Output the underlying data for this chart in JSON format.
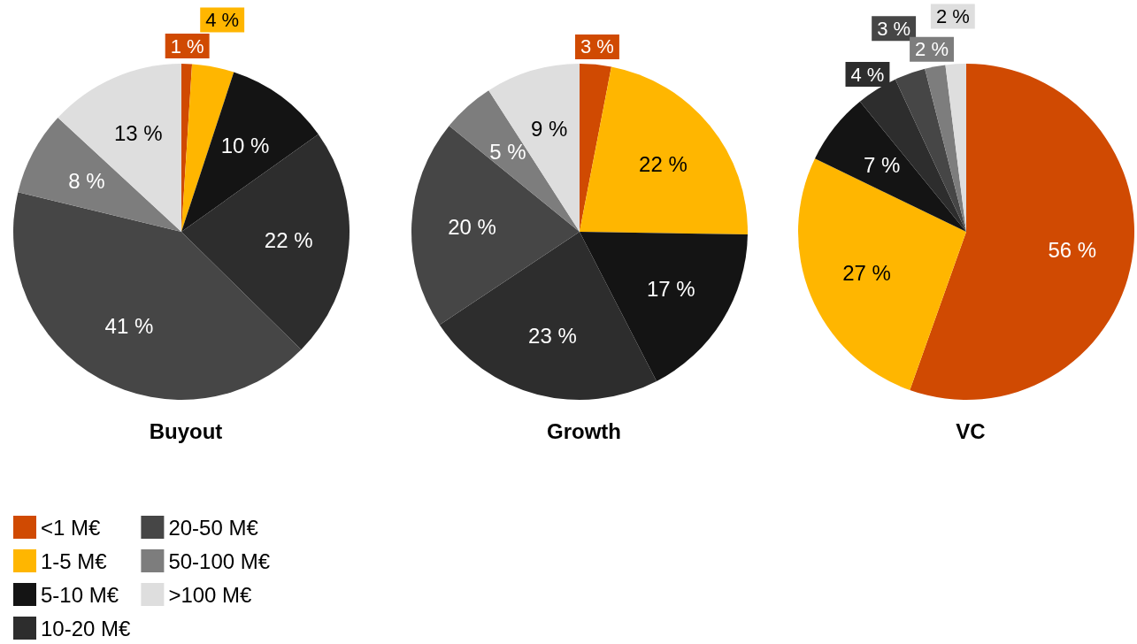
{
  "chart_data": [
    {
      "type": "pie",
      "title": "Buyout",
      "categories": [
        "<1 M€",
        "1-5 M€",
        "5-10 M€",
        "10-20 M€",
        "20-50 M€",
        "50-100 M€",
        ">100 M€"
      ],
      "values": [
        1,
        4,
        10,
        22,
        41,
        8,
        13
      ],
      "value_labels": [
        "1 %",
        "4 %",
        "10 %",
        "22 %",
        "41 %",
        "8 %",
        "13 %"
      ],
      "colors": [
        "#d04a02",
        "#ffb600",
        "#141414",
        "#2d2d2d",
        "#464646",
        "#7d7d7d",
        "#dedede"
      ],
      "legend": "bottom left"
    },
    {
      "type": "pie",
      "title": "Growth",
      "categories": [
        null,
        null,
        null,
        null,
        null,
        null,
        null
      ],
      "values": [
        3,
        22,
        17,
        23,
        20,
        5,
        9
      ],
      "value_labels": [
        "3 %",
        "22 %",
        "17 %",
        "23 %",
        "20 %",
        "5 %",
        "9 %"
      ],
      "colors": [
        "#d04a02",
        "#ffb600",
        "#141414",
        "#2d2d2d",
        "#464646",
        "#7d7d7d",
        "#dedede"
      ]
    },
    {
      "type": "pie",
      "title": "VC",
      "categories": [
        null,
        null,
        null,
        null,
        null,
        null,
        null
      ],
      "values": [
        56,
        27,
        7,
        4,
        3,
        2,
        2
      ],
      "value_labels": [
        "56 %",
        "27 %",
        "7 %",
        "4 %",
        "3 %",
        "2 %",
        "2 %"
      ],
      "colors": [
        "#d04a02",
        "#ffb600",
        "#141414",
        "#2d2d2d",
        "#464646",
        "#7d7d7d",
        "#dedede"
      ]
    }
  ]
}
